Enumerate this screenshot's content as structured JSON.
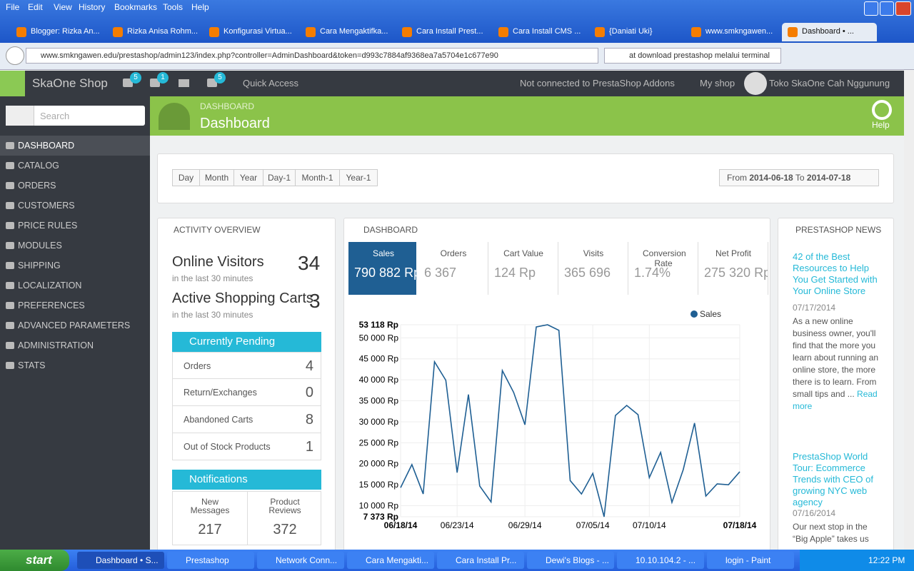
{
  "browser": {
    "menu": [
      "File",
      "Edit",
      "View",
      "History",
      "Bookmarks",
      "Tools",
      "Help"
    ],
    "tabs": [
      "Blogger: Rizka An...",
      "Rizka Anisa Rohm...",
      "Konfigurasi Virtua...",
      "Cara Mengaktifka...",
      "Cara Install Prest...",
      "Cara Install CMS ...",
      "{Daniati Uki}",
      "www.smkngawen...",
      "Dashboard • ..."
    ],
    "url": "www.smkngawen.edu/prestashop/admin123/index.php?controller=AdminDashboard&token=d993c7884af9368ea7a5704e1c677e90",
    "search": "at download prestashop melalui terminal"
  },
  "topbar": {
    "shop": "SkaOne Shop",
    "badges": [
      5,
      1,
      5
    ],
    "quick_access": "Quick Access",
    "addons": "Not connected to PrestaShop Addons",
    "my_shop": "My shop",
    "user": "Toko SkaOne Cah Nggunung"
  },
  "sidebar": {
    "search_placeholder": "Search",
    "menu": [
      "DASHBOARD",
      "CATALOG",
      "ORDERS",
      "CUSTOMERS",
      "PRICE RULES",
      "MODULES",
      "SHIPPING",
      "LOCALIZATION",
      "PREFERENCES",
      "ADVANCED PARAMETERS",
      "ADMINISTRATION",
      "STATS"
    ]
  },
  "header": {
    "breadcrumb": "DASHBOARD",
    "title": "Dashboard",
    "help": "Help"
  },
  "date_range": {
    "buttons": [
      "Day",
      "Month",
      "Year",
      "Day-1",
      "Month-1",
      "Year-1"
    ],
    "from_label": "From",
    "from": "2014-06-18",
    "to_label": "To",
    "to": "2014-07-18"
  },
  "activity": {
    "title": "ACTIVITY OVERVIEW",
    "online_visitors": {
      "label": "Online Visitors",
      "sub": "in the last 30 minutes",
      "value": 34
    },
    "active_carts": {
      "label": "Active Shopping Carts",
      "sub": "in the last 30 minutes",
      "value": 3
    },
    "pending": {
      "title": "Currently Pending",
      "rows": [
        {
          "label": "Orders",
          "value": 4
        },
        {
          "label": "Return/Exchanges",
          "value": 0
        },
        {
          "label": "Abandoned Carts",
          "value": 8
        },
        {
          "label": "Out of Stock Products",
          "value": 1
        }
      ]
    },
    "notifications": {
      "title": "Notifications",
      "items": [
        {
          "label": "New Messages",
          "value": 217
        },
        {
          "label": "Product Reviews",
          "value": 372
        }
      ]
    }
  },
  "dashboard": {
    "title": "DASHBOARD",
    "kpis": [
      {
        "label": "Sales",
        "value": "790 882 Rp"
      },
      {
        "label": "Orders",
        "value": "6 367"
      },
      {
        "label": "Cart Value",
        "value": "124 Rp"
      },
      {
        "label": "Visits",
        "value": "365 696"
      },
      {
        "label": "Conversion Rate",
        "value": "1.74%"
      },
      {
        "label": "Net Profit",
        "value": "275 320 Rp"
      }
    ]
  },
  "chart_data": {
    "type": "line",
    "categories": [
      "06/18/14",
      null,
      null,
      null,
      null,
      "06/23/14",
      null,
      null,
      null,
      null,
      null,
      "06/29/14",
      null,
      null,
      null,
      null,
      null,
      "07/05/14",
      null,
      null,
      null,
      null,
      "07/10/14",
      null,
      null,
      null,
      null,
      null,
      null,
      null,
      "07/18/14"
    ],
    "series": [
      {
        "name": "Sales",
        "color": "#1f5f93",
        "values": [
          14300,
          19800,
          12800,
          44300,
          39900,
          17900,
          36500,
          14700,
          10900,
          42200,
          37000,
          29300,
          52600,
          53118,
          51800,
          16000,
          12800,
          17700,
          7373,
          31500,
          33900,
          31700,
          16700,
          22700,
          10800,
          18600,
          29700,
          12300,
          15200,
          15000,
          18100
        ]
      }
    ],
    "ylim": [
      7373,
      53118
    ],
    "yticks": [
      {
        "value": 7373,
        "label": "7 373 Rp"
      },
      {
        "value": 10000,
        "label": "10 000 Rp"
      },
      {
        "value": 15000,
        "label": "15 000 Rp"
      },
      {
        "value": 20000,
        "label": "20 000 Rp"
      },
      {
        "value": 25000,
        "label": "25 000 Rp"
      },
      {
        "value": 30000,
        "label": "30 000 Rp"
      },
      {
        "value": 35000,
        "label": "35 000 Rp"
      },
      {
        "value": 40000,
        "label": "40 000 Rp"
      },
      {
        "value": 45000,
        "label": "45 000 Rp"
      },
      {
        "value": 50000,
        "label": "50 000 Rp"
      },
      {
        "value": 53118,
        "label": "53 118 Rp"
      }
    ],
    "grid": true,
    "legend": "top-right"
  },
  "news": {
    "title": "PRESTASHOP NEWS",
    "items": [
      {
        "title": "42 of the Best Resources to Help You Get Started with Your Online Store",
        "date": "07/17/2014",
        "text": "As a new online business owner, you'll find that the more you learn about running an online store, the more there is to learn. From small tips and ...",
        "more": "Read more"
      },
      {
        "title": "PrestaShop World Tour: Ecommerce Trends with CEO of growing NYC web agency",
        "date": "07/16/2014",
        "text": "Our next stop in the “Big Apple” takes us"
      }
    ]
  },
  "taskbar": {
    "start": "start",
    "items": [
      "Dashboard • S...",
      "Prestashop",
      "Network Conn...",
      "Cara Mengakti...",
      "Cara Install Pr...",
      "Dewi's Blogs - ...",
      "10.10.104.2 - ...",
      "login - Paint"
    ],
    "time": "12:22 PM"
  }
}
